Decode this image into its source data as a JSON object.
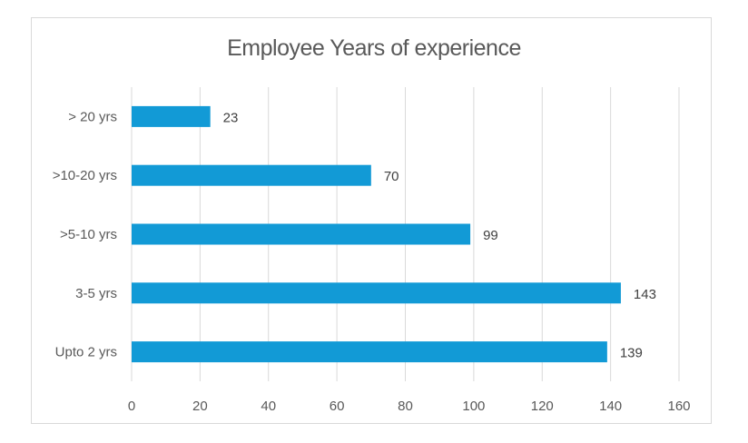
{
  "chart_data": {
    "type": "bar",
    "orientation": "horizontal",
    "title": "Employee  Years of experience",
    "categories": [
      "> 20 yrs",
      ">10-20 yrs",
      ">5-10 yrs",
      "3-5 yrs",
      "Upto 2 yrs"
    ],
    "values": [
      23,
      70,
      99,
      143,
      139
    ],
    "xlabel": "",
    "ylabel": "",
    "xlim": [
      0,
      160
    ],
    "xticks": [
      "0",
      "20",
      "40",
      "60",
      "80",
      "100",
      "120",
      "140",
      "160"
    ],
    "grid": "vertical",
    "legend": "none",
    "data_labels": true,
    "bar_color": "#129ad6",
    "grid_color": "#d9d9d9",
    "text_color": "#595959"
  }
}
